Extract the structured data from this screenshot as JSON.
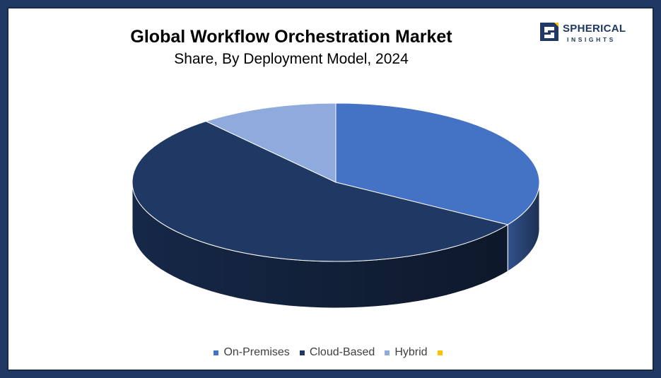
{
  "header": {
    "title": "Global Workflow Orchestration Market",
    "subtitle": "Share, By Deployment Model, 2024"
  },
  "logo": {
    "word1": "SPHERICAL",
    "word2": "INSIGHTS"
  },
  "chart_data": {
    "type": "pie",
    "style": "3d",
    "title": "Global Workflow Orchestration Market",
    "subtitle": "Share, By Deployment Model, 2024",
    "legend_position": "bottom",
    "categories": [
      "On-Premises",
      "Cloud-Based",
      "Hybrid",
      ""
    ],
    "values": [
      34,
      55,
      11,
      0
    ],
    "colors": [
      "#4472c4",
      "#1f3864",
      "#8faadc",
      "#ffc000"
    ]
  }
}
